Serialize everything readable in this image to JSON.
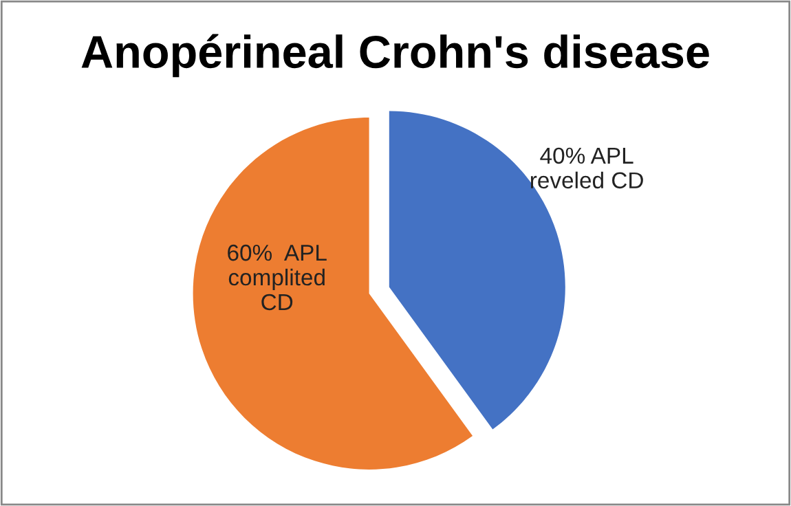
{
  "chart_data": {
    "type": "pie",
    "title": "Anopérineal Crohn's disease",
    "categories": [
      "40% APL\nreveled CD",
      "60%  APL\ncomplited\nCD"
    ],
    "values": [
      40,
      60
    ],
    "colors": [
      "#4472c4",
      "#ed7d31"
    ]
  }
}
